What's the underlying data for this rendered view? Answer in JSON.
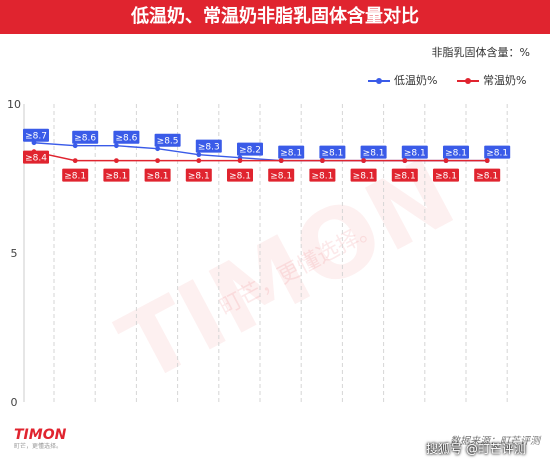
{
  "header": {
    "title": "低温奶、常温奶非脂乳固体含量对比"
  },
  "chart_data": {
    "type": "line",
    "title": "低温奶、常温奶非脂乳固体含量对比",
    "unit_label": "非脂乳固体含量：%",
    "x": [
      1,
      2,
      3,
      4,
      5,
      6,
      7,
      8,
      9,
      10,
      11,
      12
    ],
    "ylim": [
      0,
      10
    ],
    "yticks": [
      "0",
      "5",
      "10"
    ],
    "grid": "vertical-dashed",
    "legend_position": "top-right",
    "series": [
      {
        "name": "低温奶%",
        "color": "#3a5be8",
        "values": [
          8.7,
          8.6,
          8.6,
          8.5,
          8.3,
          8.2,
          8.1,
          8.1,
          8.1,
          8.1,
          8.1,
          8.1
        ],
        "labels": [
          "≥8.7",
          "≥8.6",
          "≥8.6",
          "≥8.5",
          "≥8.3",
          "≥8.2",
          "≥8.1",
          "≥8.1",
          "≥8.1",
          "≥8.1",
          "≥8.1",
          "≥8.1"
        ]
      },
      {
        "name": "常温奶%",
        "color": "#e0242f",
        "values": [
          8.4,
          8.1,
          8.1,
          8.1,
          8.1,
          8.1,
          8.1,
          8.1,
          8.1,
          8.1,
          8.1,
          8.1
        ],
        "labels": [
          "≥8.4",
          "≥8.1",
          "≥8.1",
          "≥8.1",
          "≥8.1",
          "≥8.1",
          "≥8.1",
          "≥8.1",
          "≥8.1",
          "≥8.1",
          "≥8.1",
          "≥8.1"
        ]
      }
    ]
  },
  "watermark": {
    "logo": "TIMON",
    "slogan": "町芒，更懂选择。"
  },
  "footer": {
    "logo": "TIMON",
    "logo_sub": "町芒，更懂选择。",
    "source": "数据来源：町芒评测",
    "overlay": "搜狐号 @町芒评测"
  }
}
